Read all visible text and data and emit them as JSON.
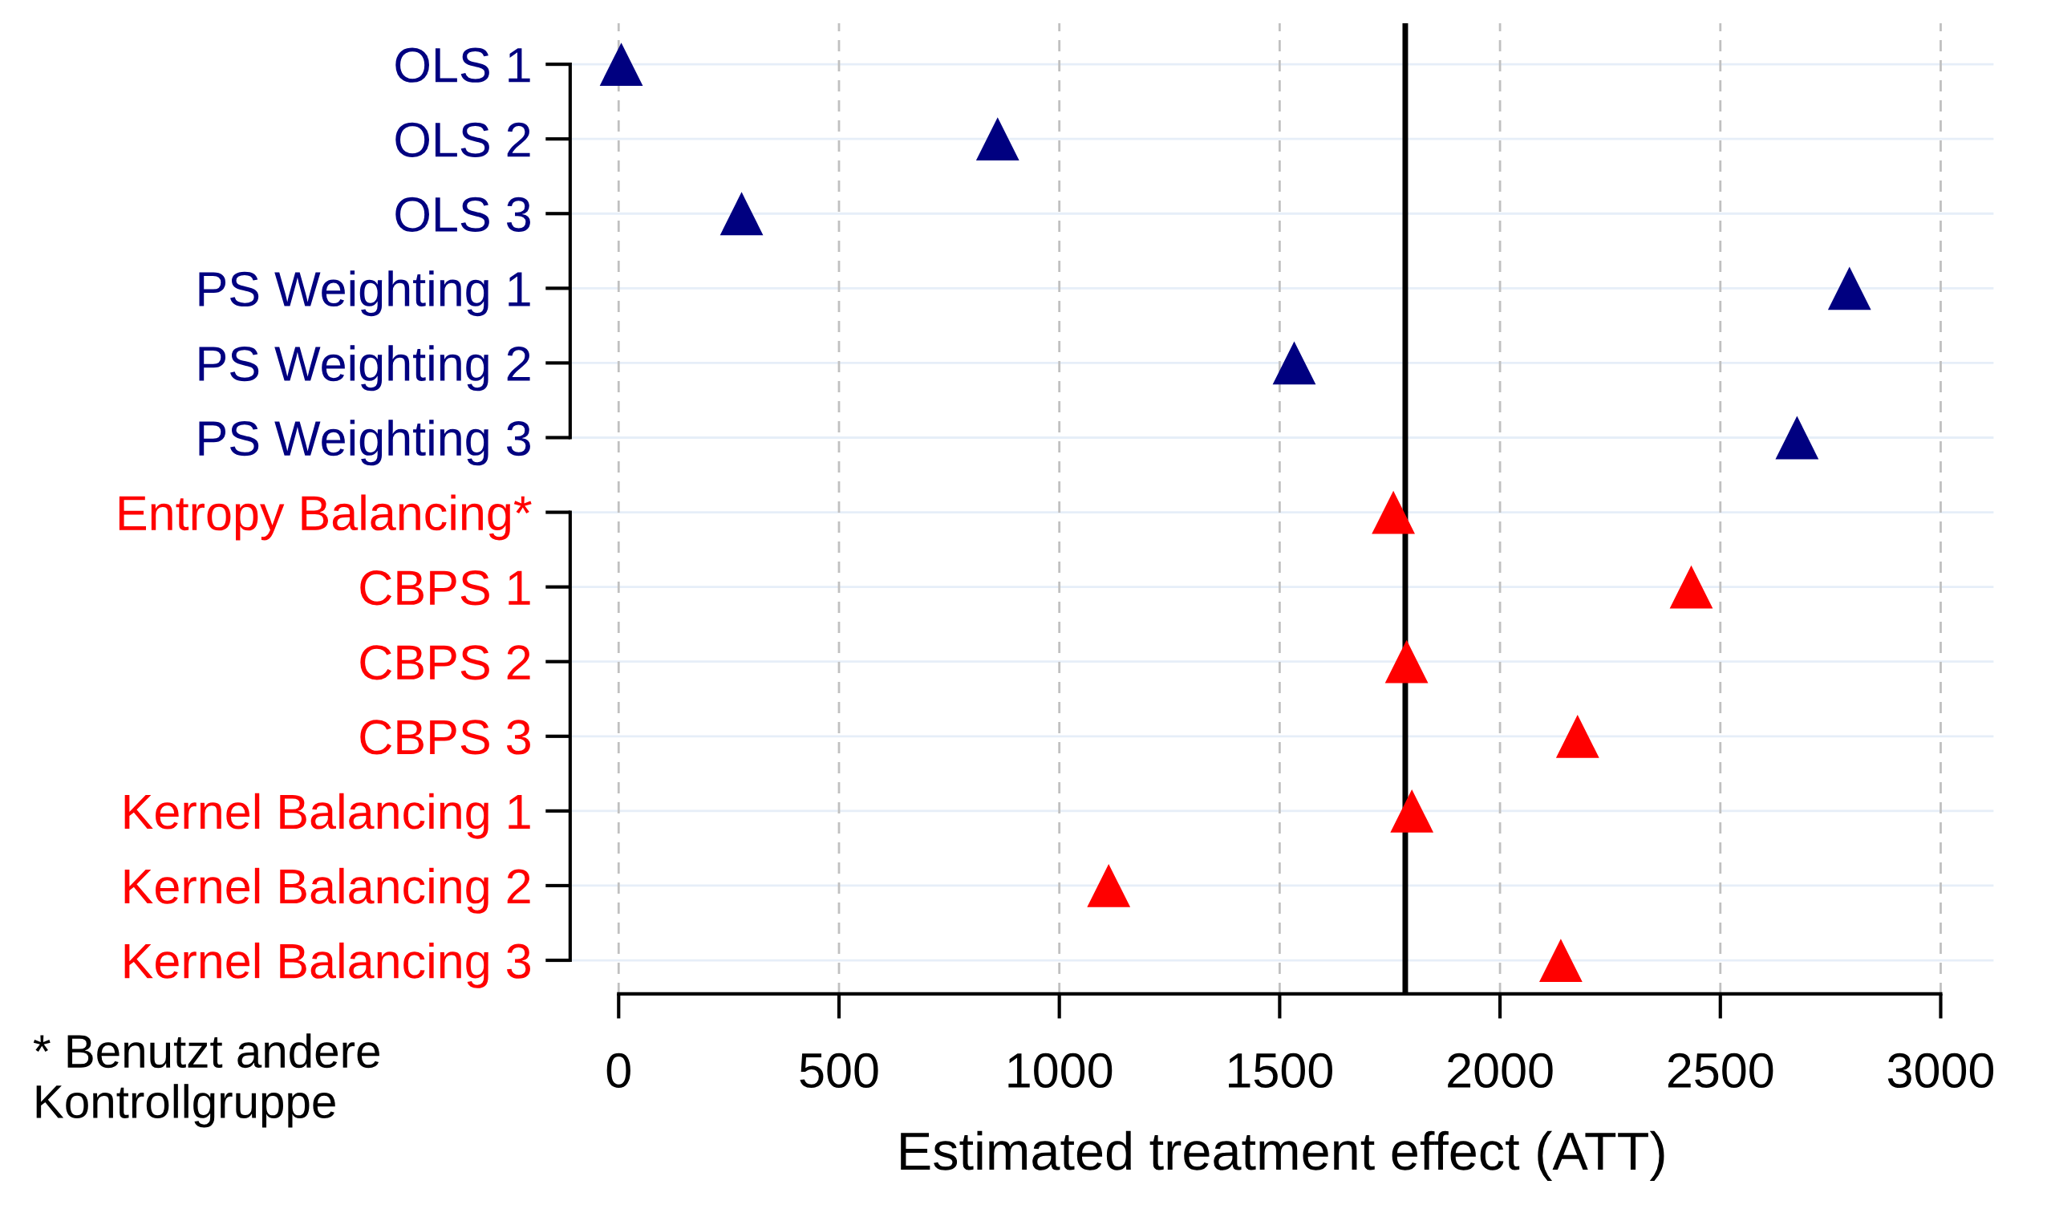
{
  "chart_data": {
    "type": "scatter",
    "orientation": "horizontal",
    "xlabel": "Estimated treatment effect (ATT)",
    "categories": [
      "OLS 1",
      "OLS 2",
      "OLS 3",
      "PS Weighting 1",
      "PS Weighting 2",
      "PS Weighting 3",
      "Entropy Balancing*",
      "CBPS 1",
      "CBPS 2",
      "CBPS 3",
      "Kernel Balancing 1",
      "Kernel Balancing 2",
      "Kernel Balancing 3"
    ],
    "series": [
      {
        "color": "#000080",
        "values": [
          6,
          860,
          279,
          2793,
          1533,
          2674,
          null,
          null,
          null,
          null,
          null,
          null,
          null
        ]
      },
      {
        "color": "#ff0000",
        "values": [
          null,
          null,
          null,
          null,
          null,
          null,
          1758,
          2434,
          1788,
          2176,
          1800,
          1112,
          2138
        ]
      }
    ],
    "xlim": [
      -110,
      3120
    ],
    "xticks": [
      0,
      500,
      1000,
      1500,
      2000,
      2500,
      3000
    ],
    "ref_lines": [
      {
        "axis": "x",
        "value": 1785,
        "color": "#000000",
        "line_style": "solid"
      }
    ],
    "grid": true,
    "marker": "triangle",
    "annotations": [
      "* Benutzt andere\nKontrollgruppe"
    ]
  }
}
